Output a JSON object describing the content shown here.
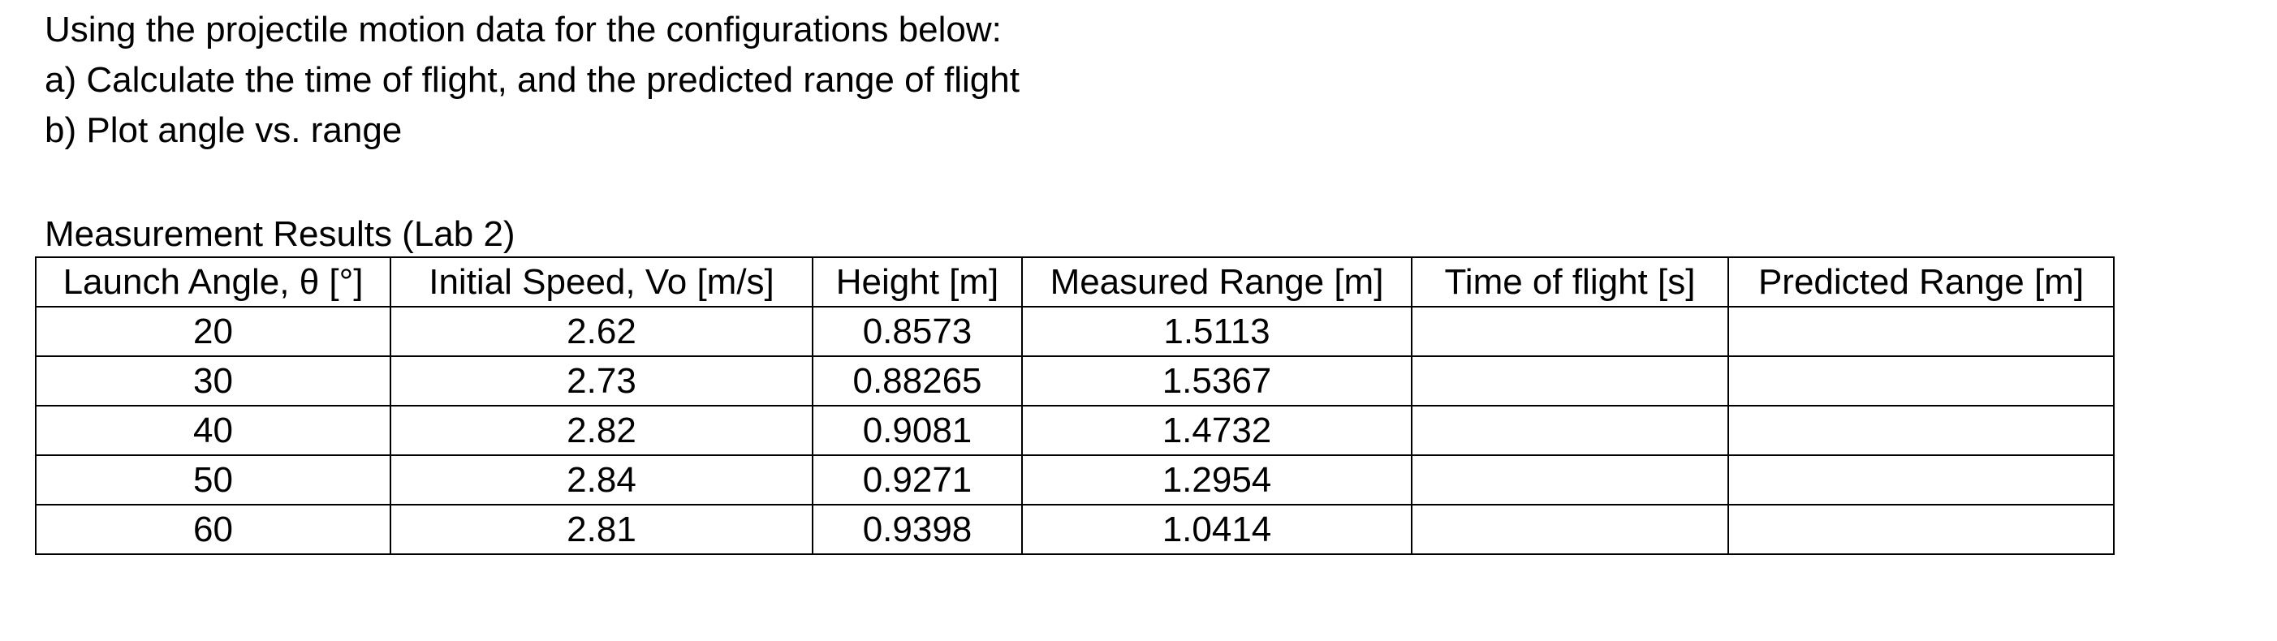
{
  "page": {
    "background": "#ffffff",
    "text_color": "#000000",
    "table_border_color": "#000000"
  },
  "instructions": {
    "line1": "Using the projectile motion data for the configurations below:",
    "line2": "a) Calculate the time of flight, and the predicted range of flight",
    "line3": "b) Plot angle vs. range"
  },
  "section": {
    "title": "Measurement Results (Lab 2)"
  },
  "table": {
    "columns": [
      "Launch Angle, θ [°]",
      "Initial Speed, Vo [m/s]",
      "Height [m]",
      "Measured Range [m]",
      "Time of flight [s]",
      "Predicted Range [m]"
    ],
    "rows": [
      {
        "launch_angle": "20",
        "initial_speed": "2.62",
        "height": "0.8573",
        "measured_range": "1.5113",
        "time_of_flight": "",
        "predicted_range": ""
      },
      {
        "launch_angle": "30",
        "initial_speed": "2.73",
        "height": "0.88265",
        "measured_range": "1.5367",
        "time_of_flight": "",
        "predicted_range": ""
      },
      {
        "launch_angle": "40",
        "initial_speed": "2.82",
        "height": "0.9081",
        "measured_range": "1.4732",
        "time_of_flight": "",
        "predicted_range": ""
      },
      {
        "launch_angle": "50",
        "initial_speed": "2.84",
        "height": "0.9271",
        "measured_range": "1.2954",
        "time_of_flight": "",
        "predicted_range": ""
      },
      {
        "launch_angle": "60",
        "initial_speed": "2.81",
        "height": "0.9398",
        "measured_range": "1.0414",
        "time_of_flight": "",
        "predicted_range": ""
      }
    ]
  }
}
